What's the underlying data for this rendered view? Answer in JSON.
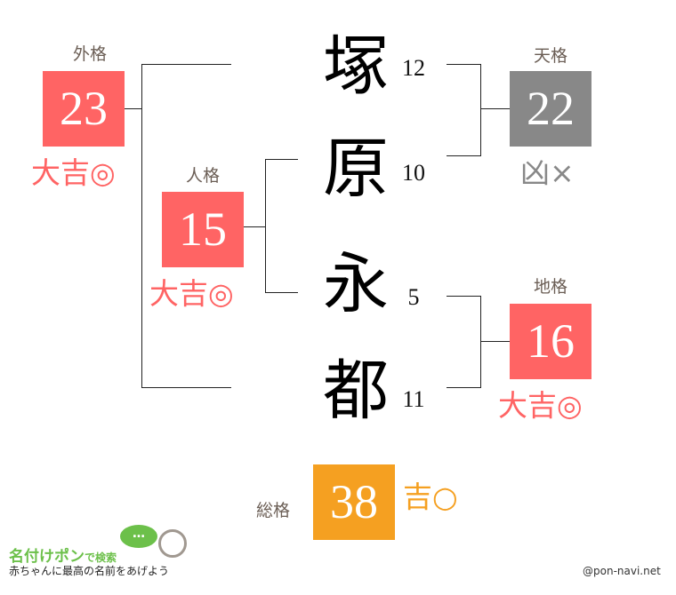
{
  "name_chars": [
    {
      "char": "塚",
      "strokes": "12"
    },
    {
      "char": "原",
      "strokes": "10"
    },
    {
      "char": "永",
      "strokes": "5"
    },
    {
      "char": "都",
      "strokes": "11"
    }
  ],
  "gaikaku": {
    "label": "外格",
    "value": "23",
    "fortune": "大吉◎",
    "color": "#ff6464"
  },
  "jinkaku": {
    "label": "人格",
    "value": "15",
    "fortune": "大吉◎",
    "color": "#ff6464"
  },
  "tenkaku": {
    "label": "天格",
    "value": "22",
    "fortune": "凶×",
    "color": "#888888"
  },
  "chikaku": {
    "label": "地格",
    "value": "16",
    "fortune": "大吉◎",
    "color": "#ff6464"
  },
  "soukaku": {
    "label": "総格",
    "value": "38",
    "fortune": "吉○",
    "color": "#f5a021"
  },
  "footer": {
    "logo_title": "名付けポン",
    "logo_suffix": "で検索",
    "logo_tagline": "赤ちゃんに最高の名前をあげよう",
    "bubble": "…",
    "credit": "@pon-navi.net",
    "logo_green": "#6cc04a"
  }
}
